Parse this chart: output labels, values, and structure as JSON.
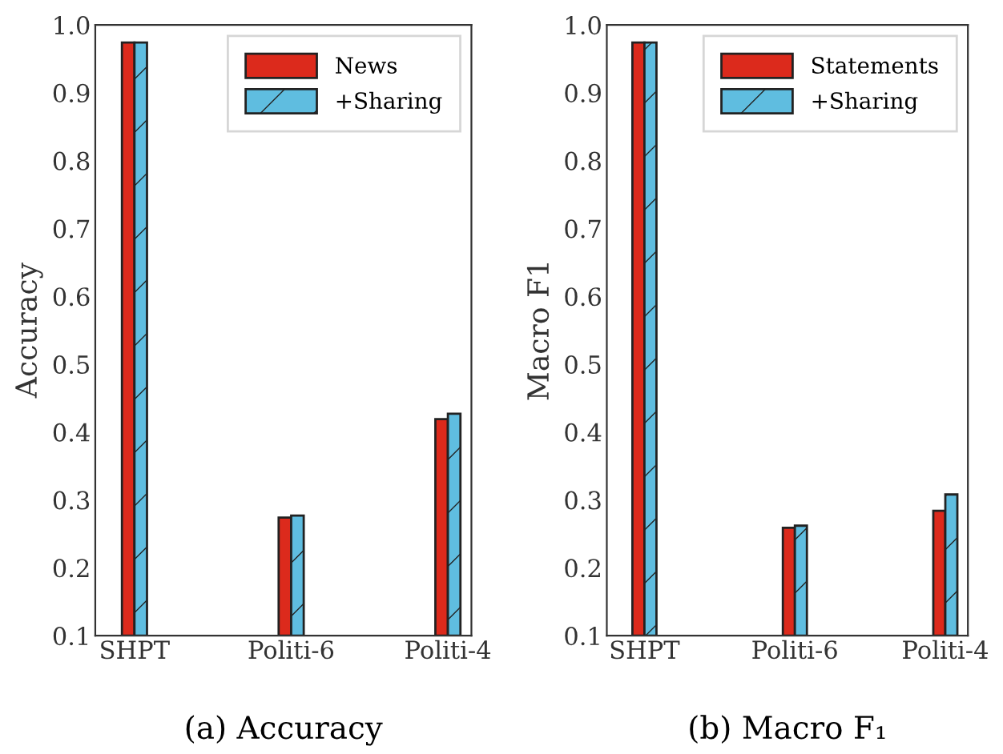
{
  "chart_data": [
    {
      "type": "bar",
      "ylabel": "Accuracy",
      "categories": [
        "SHPT",
        "Politi-6",
        "Politi-4"
      ],
      "series": [
        {
          "name": "News",
          "color": "#dc2a1c",
          "values": [
            0.974,
            0.274,
            0.419
          ]
        },
        {
          "name": "+Sharing",
          "color": "#5fbde0",
          "values": [
            0.974,
            0.277,
            0.427
          ]
        }
      ],
      "ylim": [
        0.1,
        1.0
      ],
      "yticks": [
        0.1,
        0.2,
        0.3,
        0.4,
        0.5,
        0.6,
        0.7,
        0.8,
        0.9,
        {
          "value": 1,
          "label": "1.0"
        }
      ],
      "grid": false,
      "legend": "top right",
      "annotations": [
        "(a) Accuracy"
      ]
    },
    {
      "type": "bar",
      "ylabel": "Macro F1",
      "categories": [
        "SHPT",
        "Politi-6",
        "Politi-4"
      ],
      "series": [
        {
          "name": "Statements",
          "color": "#dc2a1c",
          "values": [
            0.974,
            0.259,
            0.284
          ]
        },
        {
          "name": "+Sharing",
          "color": "#5fbde0",
          "values": [
            0.974,
            0.262,
            0.308
          ]
        }
      ],
      "ylim": [
        0.1,
        1.0
      ],
      "yticks": [
        0.1,
        0.2,
        0.3,
        0.4,
        0.5,
        0.6,
        0.7,
        0.8,
        0.9,
        {
          "value": 1,
          "label": "1.0"
        }
      ],
      "grid": false,
      "legend": "top right",
      "annotations": [
        "(b) Macro F₁"
      ]
    }
  ]
}
